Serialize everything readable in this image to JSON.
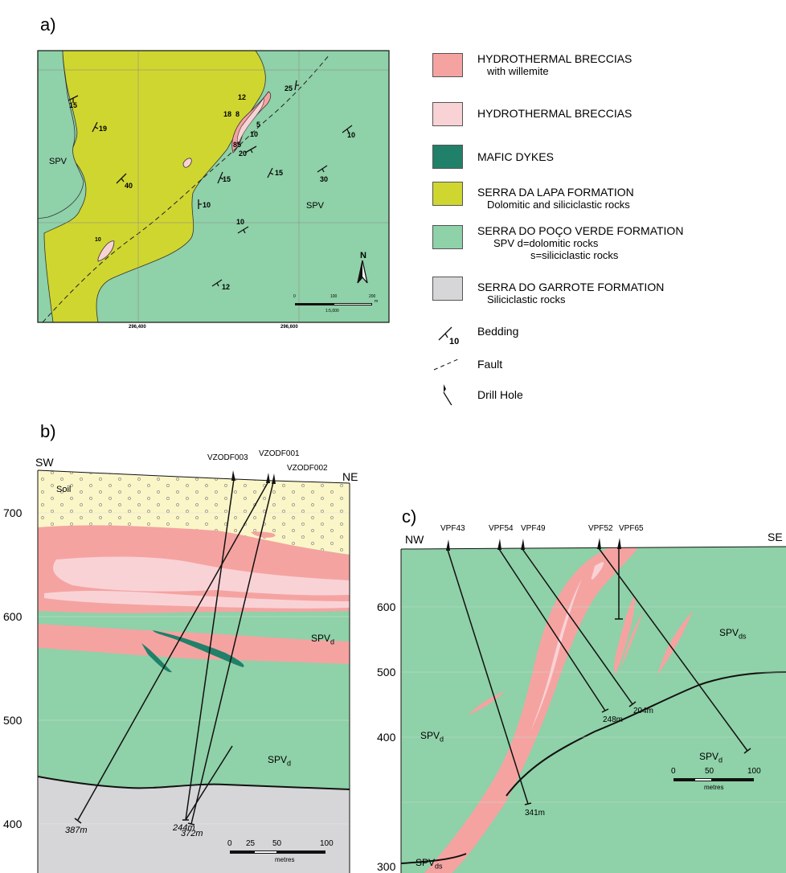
{
  "panels": {
    "a": "a)",
    "b": "b)",
    "c": "c)"
  },
  "map": {
    "units": [
      "SPV",
      "SPV"
    ],
    "dips": [
      "15",
      "19",
      "40",
      "12",
      "18",
      "8",
      "5",
      "10",
      "85",
      "20",
      "15",
      "15",
      "30",
      "10",
      "25",
      "10",
      "10",
      "10",
      "12"
    ],
    "grid_x_labels": [
      "296,400",
      "296,600"
    ],
    "north": "N",
    "scale_ticks": [
      "0",
      "100",
      "200"
    ],
    "scale_unit": "m",
    "scale_ratio": "1:5,000"
  },
  "legend": {
    "items": [
      {
        "title": "HYDROTHERMAL BRECCIAS",
        "sub": [
          "with willemite"
        ],
        "color": "#f5a3a1"
      },
      {
        "title": "HYDROTHERMAL BRECCIAS",
        "sub": [],
        "color": "#f9d2d6"
      },
      {
        "title": "MAFIC DYKES",
        "sub": [],
        "color": "#218069"
      },
      {
        "title": "SERRA DA LAPA FORMATION",
        "sub": [
          "Dolomitic and siliciclastic rocks"
        ],
        "color": "#cfd630"
      },
      {
        "title": "SERRA DO POÇO VERDE FORMATION",
        "sub": [
          "SPV  d=dolomitic rocks",
          "s=siliciclastic rocks"
        ],
        "color": "#8fd1a8"
      },
      {
        "title": "SERRA DO GARROTE FORMATION",
        "sub": [
          "Siliciclastic rocks"
        ],
        "color": "#d6d6d9"
      }
    ],
    "symbols": [
      {
        "label": "Bedding",
        "value": "10",
        "icon": "bedding-icon"
      },
      {
        "label": "Fault",
        "icon": "fault-icon"
      },
      {
        "label": "Drill Hole",
        "icon": "drill-hole-icon"
      }
    ]
  },
  "section_b": {
    "ends": {
      "left": "SW",
      "right": "NE"
    },
    "y_labels": [
      "700",
      "600",
      "500",
      "400"
    ],
    "holes": [
      "VZODF003",
      "VZODF001",
      "VZODF002"
    ],
    "depths": [
      "244m",
      "387m",
      "372m"
    ],
    "soil": "Soil",
    "units": {
      "upper": "SPV",
      "upper_sub": "d",
      "lower": "SPV",
      "lower_sub": "d"
    },
    "scale_ticks": [
      "0",
      "25",
      "50",
      "100"
    ],
    "scale_unit": "metres"
  },
  "section_c": {
    "ends": {
      "left": "NW",
      "right": "SE"
    },
    "y_labels": [
      "600",
      "500",
      "400",
      "300"
    ],
    "holes": [
      "VPF43",
      "VPF54",
      "VPF49",
      "VPF52",
      "VPF65"
    ],
    "depths": [
      "204m",
      "248m",
      "341m"
    ],
    "units": {
      "ds_right": "SPV",
      "ds_right_sub": "ds",
      "d_left": "SPV",
      "d_left_sub": "d",
      "d_right": "SPV",
      "d_right_sub": "d",
      "ds_left": "SPV",
      "ds_left_sub": "ds"
    },
    "scale_ticks": [
      "0",
      "50",
      "100"
    ],
    "scale_unit": "metres"
  }
}
